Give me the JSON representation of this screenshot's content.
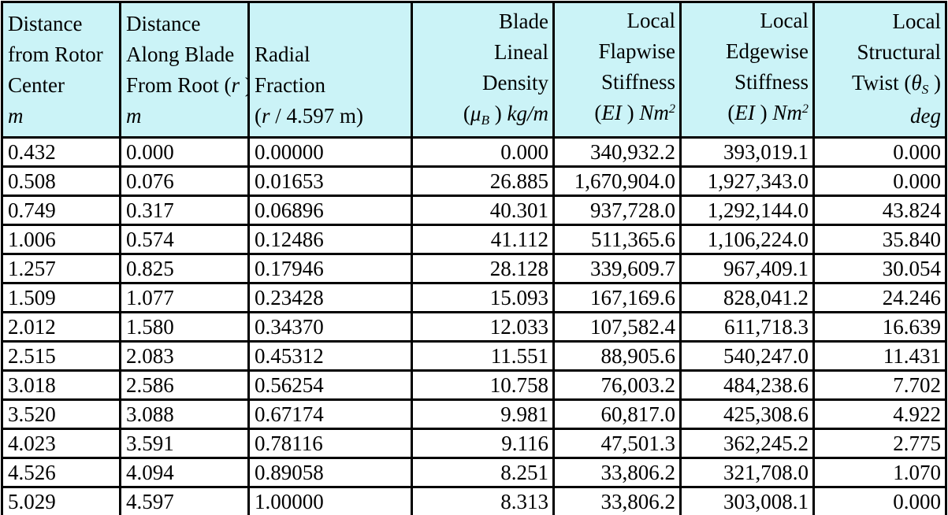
{
  "colors": {
    "header_background": "#CBF3F7",
    "border": "#000000",
    "text": "#000000",
    "row_background": "#FFFFFF"
  },
  "table": {
    "columns": [
      {
        "id": "distance-from-rotor-center",
        "align": "left",
        "header_lines": [
          [
            {
              "t": "Distance"
            }
          ],
          [
            {
              "t": "from Rotor"
            }
          ],
          [
            {
              "t": "Center"
            }
          ],
          [
            {
              "t": "m",
              "s": "i"
            }
          ]
        ]
      },
      {
        "id": "distance-along-blade-from-root",
        "align": "left",
        "header_lines": [
          [
            {
              "t": "Distance"
            }
          ],
          [
            {
              "t": "Along Blade"
            }
          ],
          [
            {
              "t": "From Root ("
            },
            {
              "t": "r",
              "s": "i"
            },
            {
              "t": " )"
            }
          ],
          [
            {
              "t": "m",
              "s": "i"
            }
          ]
        ]
      },
      {
        "id": "radial-fraction",
        "align": "left",
        "header_lines": [
          [
            {
              "t": "Radial"
            }
          ],
          [
            {
              "t": "Fraction"
            }
          ],
          [
            {
              "t": "("
            },
            {
              "t": "r",
              "s": "i"
            },
            {
              "t": " / 4.597 m)"
            }
          ]
        ]
      },
      {
        "id": "blade-lineal-density",
        "align": "right",
        "header_lines": [
          [
            {
              "t": "Blade"
            }
          ],
          [
            {
              "t": "Lineal"
            }
          ],
          [
            {
              "t": "Density"
            }
          ],
          [
            {
              "t": "("
            },
            {
              "t": "μ",
              "s": "i"
            },
            {
              "t": "B",
              "s": "sub"
            },
            {
              "t": " ) "
            },
            {
              "t": "kg/m",
              "s": "i"
            }
          ]
        ]
      },
      {
        "id": "local-flapwise-stiffness",
        "align": "right",
        "header_lines": [
          [
            {
              "t": "Local"
            }
          ],
          [
            {
              "t": "Flapwise"
            }
          ],
          [
            {
              "t": "Stiffness"
            }
          ],
          [
            {
              "t": "("
            },
            {
              "t": "EI",
              "s": "i"
            },
            {
              "t": " ) "
            },
            {
              "t": "Nm",
              "s": "i"
            },
            {
              "t": "2",
              "s": "sup"
            }
          ]
        ]
      },
      {
        "id": "local-edgewise-stiffness",
        "align": "right",
        "header_lines": [
          [
            {
              "t": "Local"
            }
          ],
          [
            {
              "t": "Edgewise"
            }
          ],
          [
            {
              "t": "Stiffness"
            }
          ],
          [
            {
              "t": "("
            },
            {
              "t": "EI",
              "s": "i"
            },
            {
              "t": " ) "
            },
            {
              "t": "Nm",
              "s": "i"
            },
            {
              "t": "2",
              "s": "sup"
            }
          ]
        ]
      },
      {
        "id": "local-structural-twist",
        "align": "right",
        "header_lines": [
          [
            {
              "t": "Local"
            }
          ],
          [
            {
              "t": "Structural"
            }
          ],
          [
            {
              "t": "Twist ("
            },
            {
              "t": "θ",
              "s": "i"
            },
            {
              "t": "S",
              "s": "sub"
            },
            {
              "t": " )"
            }
          ],
          [
            {
              "t": "deg",
              "s": "i"
            }
          ]
        ]
      }
    ],
    "rows": [
      [
        "0.432",
        "0.000",
        "0.00000",
        "0.000",
        "340,932.2",
        "393,019.1",
        "0.000"
      ],
      [
        "0.508",
        "0.076",
        "0.01653",
        "26.885",
        "1,670,904.0",
        "1,927,343.0",
        "0.000"
      ],
      [
        "0.749",
        "0.317",
        "0.06896",
        "40.301",
        "937,728.0",
        "1,292,144.0",
        "43.824"
      ],
      [
        "1.006",
        "0.574",
        "0.12486",
        "41.112",
        "511,365.6",
        "1,106,224.0",
        "35.840"
      ],
      [
        "1.257",
        "0.825",
        "0.17946",
        "28.128",
        "339,609.7",
        "967,409.1",
        "30.054"
      ],
      [
        "1.509",
        "1.077",
        "0.23428",
        "15.093",
        "167,169.6",
        "828,041.2",
        "24.246"
      ],
      [
        "2.012",
        "1.580",
        "0.34370",
        "12.033",
        "107,582.4",
        "611,718.3",
        "16.639"
      ],
      [
        "2.515",
        "2.083",
        "0.45312",
        "11.551",
        "88,905.6",
        "540,247.0",
        "11.431"
      ],
      [
        "3.018",
        "2.586",
        "0.56254",
        "10.758",
        "76,003.2",
        "484,238.6",
        "7.702"
      ],
      [
        "3.520",
        "3.088",
        "0.67174",
        "9.981",
        "60,817.0",
        "425,308.6",
        "4.922"
      ],
      [
        "4.023",
        "3.591",
        "0.78116",
        "9.116",
        "47,501.3",
        "362,245.2",
        "2.775"
      ],
      [
        "4.526",
        "4.094",
        "0.89058",
        "8.251",
        "33,806.2",
        "321,708.0",
        "1.070"
      ],
      [
        "5.029",
        "4.597",
        "1.00000",
        "8.313",
        "33,806.2",
        "303,008.1",
        "0.000"
      ]
    ]
  }
}
